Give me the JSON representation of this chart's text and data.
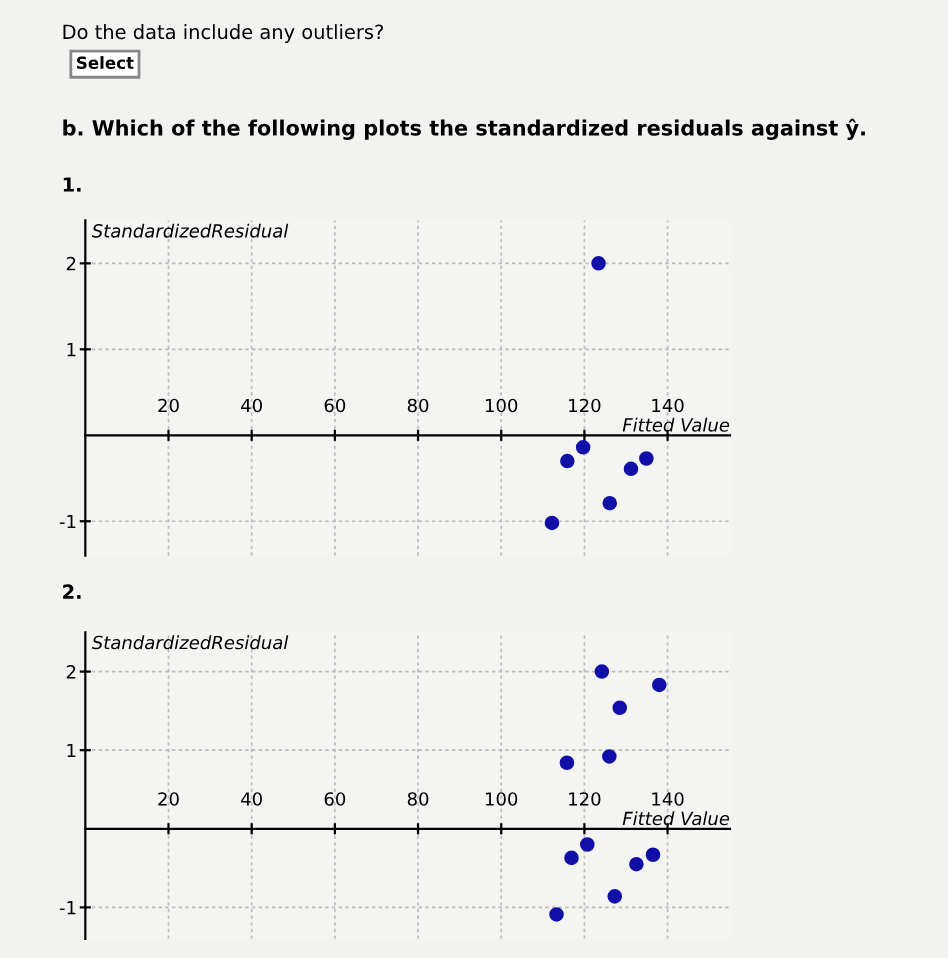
{
  "chart_data": [
    {
      "type": "scatter",
      "title": "1.",
      "annotations": [
        "Do the data include any outliers?",
        "Select",
        "b. Which of the following plots the standardized residuals against ŷ."
      ],
      "xlabel": "Fitted Value",
      "ylabel": "StandardizedResidual",
      "x": [
        123.4,
        119.7,
        115.9,
        134.9,
        131.2,
        126.1,
        112.2
      ],
      "values": [
        2.0,
        -0.14,
        -0.3,
        -0.27,
        -0.39,
        -0.79,
        -1.02
      ],
      "color": "#1010a8",
      "marker": "circle",
      "xlim": [
        0,
        155
      ],
      "xticks": [
        20,
        40,
        60,
        80,
        100,
        120,
        140
      ],
      "ylim": [
        -1.4,
        2.5
      ],
      "yticks": [
        -1,
        1,
        2
      ],
      "grid": true
    },
    {
      "type": "scatter",
      "title": "2.",
      "xlabel": "Fitted Value",
      "ylabel": "StandardizedResidual",
      "x": [
        124.2,
        138.0,
        128.5,
        126.0,
        115.8,
        120.7,
        116.9,
        136.5,
        132.5,
        127.3,
        113.3
      ],
      "values": [
        2.0,
        1.83,
        1.54,
        0.92,
        0.84,
        -0.2,
        -0.37,
        -0.33,
        -0.45,
        -0.86,
        -1.09
      ],
      "color": "#1010a8",
      "marker": "circle",
      "xlim": [
        0,
        155
      ],
      "xticks": [
        20,
        40,
        60,
        80,
        100,
        120,
        140
      ],
      "ylim": [
        -1.4,
        2.5
      ],
      "yticks": [
        -1,
        1,
        2
      ],
      "grid": true
    }
  ]
}
